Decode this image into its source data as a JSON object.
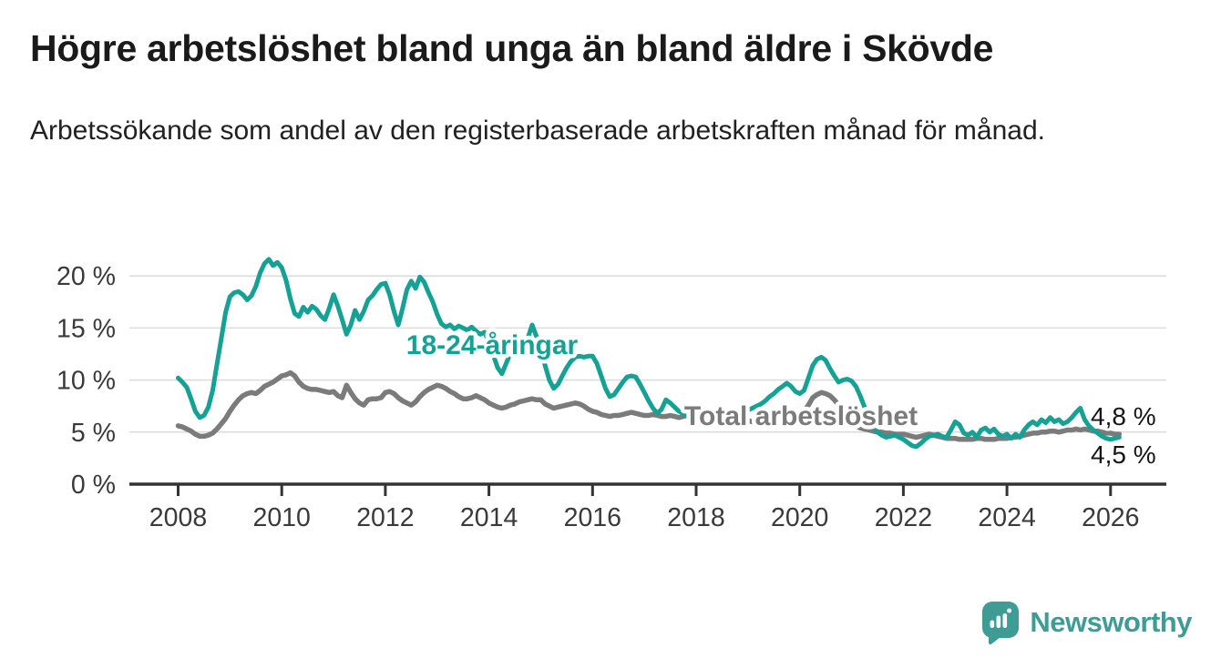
{
  "header": {
    "title": "Högre arbetslöshet bland unga än bland äldre i Skövde",
    "subtitle": "Arbetssökande som andel av den registerbaserade arbetskraften månad för månad."
  },
  "chart_data": {
    "type": "line",
    "x_start_year": 2008,
    "x_step_months": 1,
    "x_end_label": "mars 2026",
    "xlim": [
      2007.05,
      2027.1
    ],
    "ylim": [
      0,
      22.5
    ],
    "grid": true,
    "x_ticks": [
      2008,
      2010,
      2012,
      2014,
      2016,
      2018,
      2020,
      2022,
      2024,
      2026
    ],
    "x_tick_labels": [
      "2008",
      "2010",
      "2012",
      "2014",
      "2016",
      "2018",
      "2020",
      "2022",
      "2024",
      "2026"
    ],
    "y_ticks": [
      0,
      5,
      10,
      15,
      20
    ],
    "y_tick_labels": [
      "0 %",
      "5 %",
      "10 %",
      "15 %",
      "20 %"
    ],
    "colors": {
      "youth": "#16a195",
      "total": "#7b7b7b",
      "axis": "#333333",
      "grid": "#dbdbdb",
      "tick_text": "#3a3a3a",
      "end_label_text": "#151515"
    },
    "series": [
      {
        "id": "youth",
        "name": "18-24-åringar",
        "color": "#16a195",
        "values": [
          10.2,
          9.8,
          9.3,
          8.2,
          7.0,
          6.4,
          6.6,
          7.4,
          9.0,
          11.5,
          14.0,
          16.5,
          18.0,
          18.4,
          18.5,
          18.2,
          17.7,
          18.1,
          19.0,
          20.3,
          21.2,
          21.6,
          21.0,
          21.3,
          20.8,
          19.6,
          17.8,
          16.4,
          16.1,
          17.0,
          16.5,
          17.1,
          16.8,
          16.2,
          15.8,
          16.9,
          18.2,
          17.1,
          15.8,
          14.4,
          15.3,
          16.7,
          15.8,
          16.6,
          17.7,
          18.1,
          18.7,
          19.2,
          19.3,
          18.2,
          16.6,
          15.3,
          16.9,
          18.7,
          19.5,
          18.8,
          19.9,
          19.4,
          18.4,
          17.5,
          16.3,
          15.4,
          15.1,
          15.3,
          14.9,
          15.2,
          15.0,
          14.8,
          15.1,
          14.7,
          14.4,
          14.6,
          13.6,
          12.4,
          11.2,
          10.6,
          11.6,
          12.6,
          13.0,
          13.3,
          13.6,
          14.0,
          15.3,
          14.2,
          12.8,
          11.4,
          10.0,
          9.2,
          9.6,
          10.4,
          11.2,
          11.8,
          12.2,
          12.3,
          12.2,
          12.3,
          12.3,
          11.6,
          10.4,
          9.2,
          8.4,
          8.6,
          9.2,
          9.8,
          10.3,
          10.4,
          10.3,
          9.6,
          8.8,
          8.0,
          7.3,
          6.8,
          7.2,
          8.1,
          7.8,
          7.4,
          7.0,
          6.8,
          6.6,
          6.5,
          6.4,
          6.3,
          6.2,
          6.1,
          6.2,
          6.4,
          6.6,
          6.5,
          6.4,
          6.5,
          6.7,
          6.9,
          7.1,
          7.3,
          7.5,
          7.7,
          8.0,
          8.4,
          8.7,
          9.1,
          9.4,
          9.7,
          9.4,
          8.9,
          8.7,
          9.0,
          10.2,
          11.4,
          12.0,
          12.2,
          11.9,
          11.1,
          10.4,
          9.8,
          10.0,
          10.1,
          9.9,
          9.4,
          8.5,
          7.4,
          6.4,
          5.6,
          5.0,
          4.7,
          4.5,
          4.6,
          4.7,
          4.5,
          4.3,
          4.0,
          3.7,
          3.6,
          3.9,
          4.3,
          4.6,
          4.7,
          4.8,
          4.6,
          4.5,
          5.2,
          6.0,
          5.7,
          4.9,
          4.7,
          5.0,
          4.5,
          5.2,
          5.4,
          5.0,
          5.3,
          4.8,
          4.6,
          4.8,
          4.4,
          4.8,
          4.5,
          5.2,
          5.7,
          6.0,
          5.7,
          6.2,
          5.9,
          6.4,
          6.0,
          6.2,
          5.8,
          6.0,
          6.4,
          6.9,
          7.3,
          6.2,
          5.6,
          5.2,
          4.9,
          4.6,
          4.4,
          4.3,
          4.4,
          4.5
        ]
      },
      {
        "id": "total",
        "name": "Total arbetslöshet",
        "color": "#7b7b7b",
        "values": [
          5.6,
          5.5,
          5.3,
          5.1,
          4.8,
          4.6,
          4.6,
          4.7,
          4.9,
          5.3,
          5.8,
          6.3,
          7.0,
          7.6,
          8.1,
          8.5,
          8.7,
          8.8,
          8.7,
          9.0,
          9.4,
          9.6,
          9.8,
          10.1,
          10.4,
          10.5,
          10.7,
          10.4,
          9.8,
          9.4,
          9.2,
          9.1,
          9.1,
          9.0,
          8.9,
          8.8,
          8.9,
          8.5,
          8.3,
          9.5,
          8.8,
          8.2,
          7.8,
          7.6,
          8.1,
          8.2,
          8.2,
          8.3,
          8.8,
          8.9,
          8.7,
          8.3,
          8.0,
          7.8,
          7.6,
          7.9,
          8.4,
          8.8,
          9.1,
          9.3,
          9.5,
          9.4,
          9.2,
          8.9,
          8.7,
          8.4,
          8.2,
          8.2,
          8.3,
          8.5,
          8.3,
          8.1,
          7.8,
          7.6,
          7.4,
          7.3,
          7.4,
          7.6,
          7.7,
          7.9,
          8.0,
          8.1,
          8.2,
          8.1,
          8.1,
          7.7,
          7.5,
          7.3,
          7.4,
          7.5,
          7.6,
          7.7,
          7.8,
          7.7,
          7.5,
          7.2,
          7.0,
          6.9,
          6.7,
          6.6,
          6.5,
          6.6,
          6.6,
          6.7,
          6.8,
          6.9,
          6.8,
          6.7,
          6.6,
          6.6,
          6.7,
          6.6,
          6.5,
          6.5,
          6.6,
          6.5,
          6.4,
          6.5,
          6.6,
          6.5,
          6.4,
          6.3,
          6.2,
          6.1,
          6.0,
          6.0,
          6.1,
          6.0,
          5.9,
          5.9,
          6.0,
          6.1,
          6.1,
          6.0,
          6.0,
          6.1,
          6.2,
          6.3,
          6.4,
          6.4,
          6.5,
          6.6,
          6.6,
          6.7,
          6.8,
          7.0,
          7.6,
          8.3,
          8.6,
          8.8,
          8.7,
          8.5,
          8.1,
          7.6,
          7.0,
          6.4,
          5.9,
          5.6,
          5.4,
          5.3,
          5.2,
          5.1,
          5.0,
          5.0,
          4.9,
          4.9,
          4.8,
          4.8,
          4.8,
          4.7,
          4.6,
          4.5,
          4.6,
          4.7,
          4.8,
          4.7,
          4.6,
          4.5,
          4.4,
          4.4,
          4.4,
          4.3,
          4.3,
          4.3,
          4.3,
          4.4,
          4.4,
          4.3,
          4.3,
          4.3,
          4.4,
          4.4,
          4.4,
          4.5,
          4.5,
          4.6,
          4.7,
          4.8,
          4.9,
          4.9,
          5.0,
          5.0,
          5.1,
          5.1,
          5.0,
          5.1,
          5.2,
          5.2,
          5.3,
          5.2,
          5.3,
          5.2,
          5.1,
          5.1,
          5.0,
          4.9,
          4.9,
          4.8,
          4.8
        ]
      }
    ],
    "end_labels": [
      {
        "text": "4,8 %",
        "series": "Total arbetslöshet",
        "value": 4.8
      },
      {
        "text": "4,5 %",
        "series": "18-24-åringar",
        "value": 4.5
      }
    ]
  },
  "footer": {
    "brand": "Newsworthy"
  }
}
